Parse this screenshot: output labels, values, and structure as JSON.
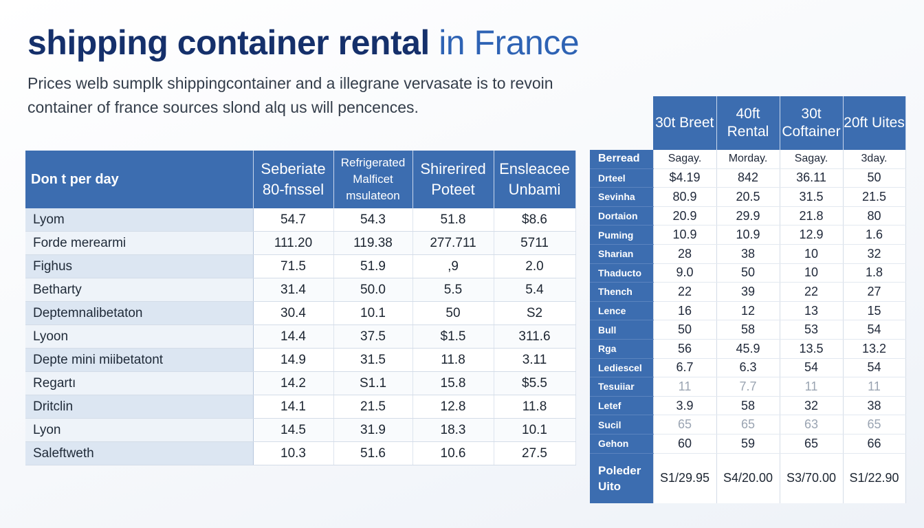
{
  "title": {
    "main": "shipping container rental",
    "accent": "in France"
  },
  "subtitle": {
    "line1": "Prices welb sumplk shippingcontainer  and a illegrane vervasate is to revoin",
    "line2": "container of france sources slond alq us will pencences."
  },
  "left_table": {
    "headers": [
      "Don t per day",
      "Seberiate 80-fnssel",
      "Refrigerated Malficet msulateon",
      "Shirerired Poteet",
      "Enslеacee Unbami"
    ],
    "rows": [
      [
        "Lyom",
        "54.7",
        "54.3",
        "51.8",
        "$8.6"
      ],
      [
        "Forde merearmi",
        "111.20",
        "119.38",
        "277.711",
        "5711"
      ],
      [
        "Fighus",
        "71.5",
        "51.9",
        ",9",
        "2.0"
      ],
      [
        "Betharty",
        "31.4",
        "50.0",
        "5.5",
        "5.4"
      ],
      [
        "Deptemnalibetaton",
        "30.4",
        "10.1",
        "50",
        "S2"
      ],
      [
        "Lyoon",
        "14.4",
        "37.5",
        "$1.5",
        "311.6"
      ],
      [
        "Depte mini miibetatont",
        "14.9",
        "31.5",
        "11.8",
        "3.11"
      ],
      [
        "Regartı",
        "14.2",
        "S1.1",
        "15.8",
        "$5.5"
      ],
      [
        "Dritclin",
        "14.1",
        "21.5",
        "12.8",
        "11.8"
      ],
      [
        "Lyon",
        "14.5",
        "31.9",
        "18.3",
        "10.1"
      ],
      [
        "Saleftweth",
        "10.3",
        "51.6",
        "10.6",
        "27.5"
      ]
    ]
  },
  "right_table": {
    "headers": [
      "30t Breet",
      "40ft Rental",
      "30t Coftainer",
      "20ft Uites"
    ],
    "rows": [
      [
        "Berread",
        "Sagay.",
        "Morday.",
        "Sagay.",
        "3day."
      ],
      [
        "Drteel",
        "$4.19",
        "842",
        "36.11",
        "50"
      ],
      [
        "Sevinha",
        "80.9",
        "20.5",
        "31.5",
        "21.5"
      ],
      [
        "Dortaion",
        "20.9",
        "29.9",
        "21.8",
        "80"
      ],
      [
        "Puming",
        "10.9",
        "10.9",
        "12.9",
        "1.6"
      ],
      [
        "Sharian",
        "28",
        "38",
        "10",
        "32"
      ],
      [
        "Thaducto",
        "9.0",
        "50",
        "10",
        "1.8"
      ],
      [
        "Thench",
        "22",
        "39",
        "22",
        "27"
      ],
      [
        "Lence",
        "16",
        "12",
        "13",
        "15"
      ],
      [
        "Bull",
        "50",
        "58",
        "53",
        "54"
      ],
      [
        "Rga",
        "56",
        "45.9",
        "13.5",
        "13.2"
      ],
      [
        "Lediescel",
        "6.7",
        "6.3",
        "54",
        "54"
      ],
      [
        "Tesuiiar",
        "11",
        "7.7",
        "11",
        "11"
      ],
      [
        "Letef",
        "3.9",
        "58",
        "32",
        "38"
      ],
      [
        "Sucil",
        "65",
        "65",
        "63",
        "65"
      ],
      [
        "Gehon",
        "60",
        "59",
        "65",
        "66"
      ]
    ],
    "footer": [
      "Poleder Uito",
      "S1/29.95",
      "S4/20.00",
      "S3/70.00",
      "S1/22.90"
    ]
  }
}
